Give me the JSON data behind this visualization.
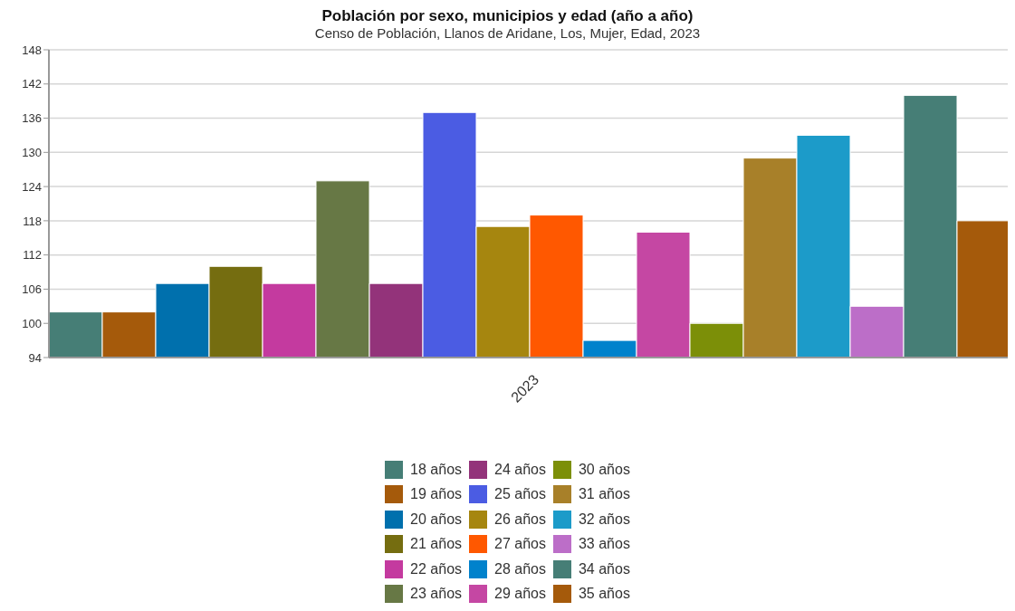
{
  "chart_data": {
    "type": "bar",
    "title": "Población por sexo, municipios y edad (año a año)",
    "subtitle": "Censo de Población, Llanos de Aridane, Los, Mujer, Edad, 2023",
    "categories": [
      "2023"
    ],
    "ylim": [
      94,
      148
    ],
    "yticks": [
      94,
      100,
      106,
      112,
      118,
      124,
      130,
      136,
      142,
      148
    ],
    "grid": "y",
    "legend": "bottom",
    "series": [
      {
        "name": "18 años",
        "color": "#467e76",
        "values": [
          102
        ]
      },
      {
        "name": "19 años",
        "color": "#a55a0b",
        "values": [
          102
        ]
      },
      {
        "name": "20 años",
        "color": "#0070ad",
        "values": [
          107
        ]
      },
      {
        "name": "21 años",
        "color": "#756d10",
        "values": [
          110
        ]
      },
      {
        "name": "22 años",
        "color": "#c43a9f",
        "values": [
          107
        ]
      },
      {
        "name": "23 años",
        "color": "#677845",
        "values": [
          125
        ]
      },
      {
        "name": "24 años",
        "color": "#93337a",
        "values": [
          107
        ]
      },
      {
        "name": "25 años",
        "color": "#4b5ce3",
        "values": [
          137
        ]
      },
      {
        "name": "26 años",
        "color": "#a6860f",
        "values": [
          117
        ]
      },
      {
        "name": "27 años",
        "color": "#ff5800",
        "values": [
          119
        ]
      },
      {
        "name": "28 años",
        "color": "#0082cc",
        "values": [
          97
        ]
      },
      {
        "name": "29 años",
        "color": "#c547a3",
        "values": [
          116
        ]
      },
      {
        "name": "30 años",
        "color": "#7c8f08",
        "values": [
          100
        ]
      },
      {
        "name": "31 años",
        "color": "#a88029",
        "values": [
          129
        ]
      },
      {
        "name": "32 años",
        "color": "#1c9bc9",
        "values": [
          133
        ]
      },
      {
        "name": "33 años",
        "color": "#bc6ec8",
        "values": [
          103
        ]
      },
      {
        "name": "34 años",
        "color": "#467e76",
        "values": [
          140
        ]
      },
      {
        "name": "35 años",
        "color": "#a55a0b",
        "values": [
          118
        ]
      }
    ]
  }
}
